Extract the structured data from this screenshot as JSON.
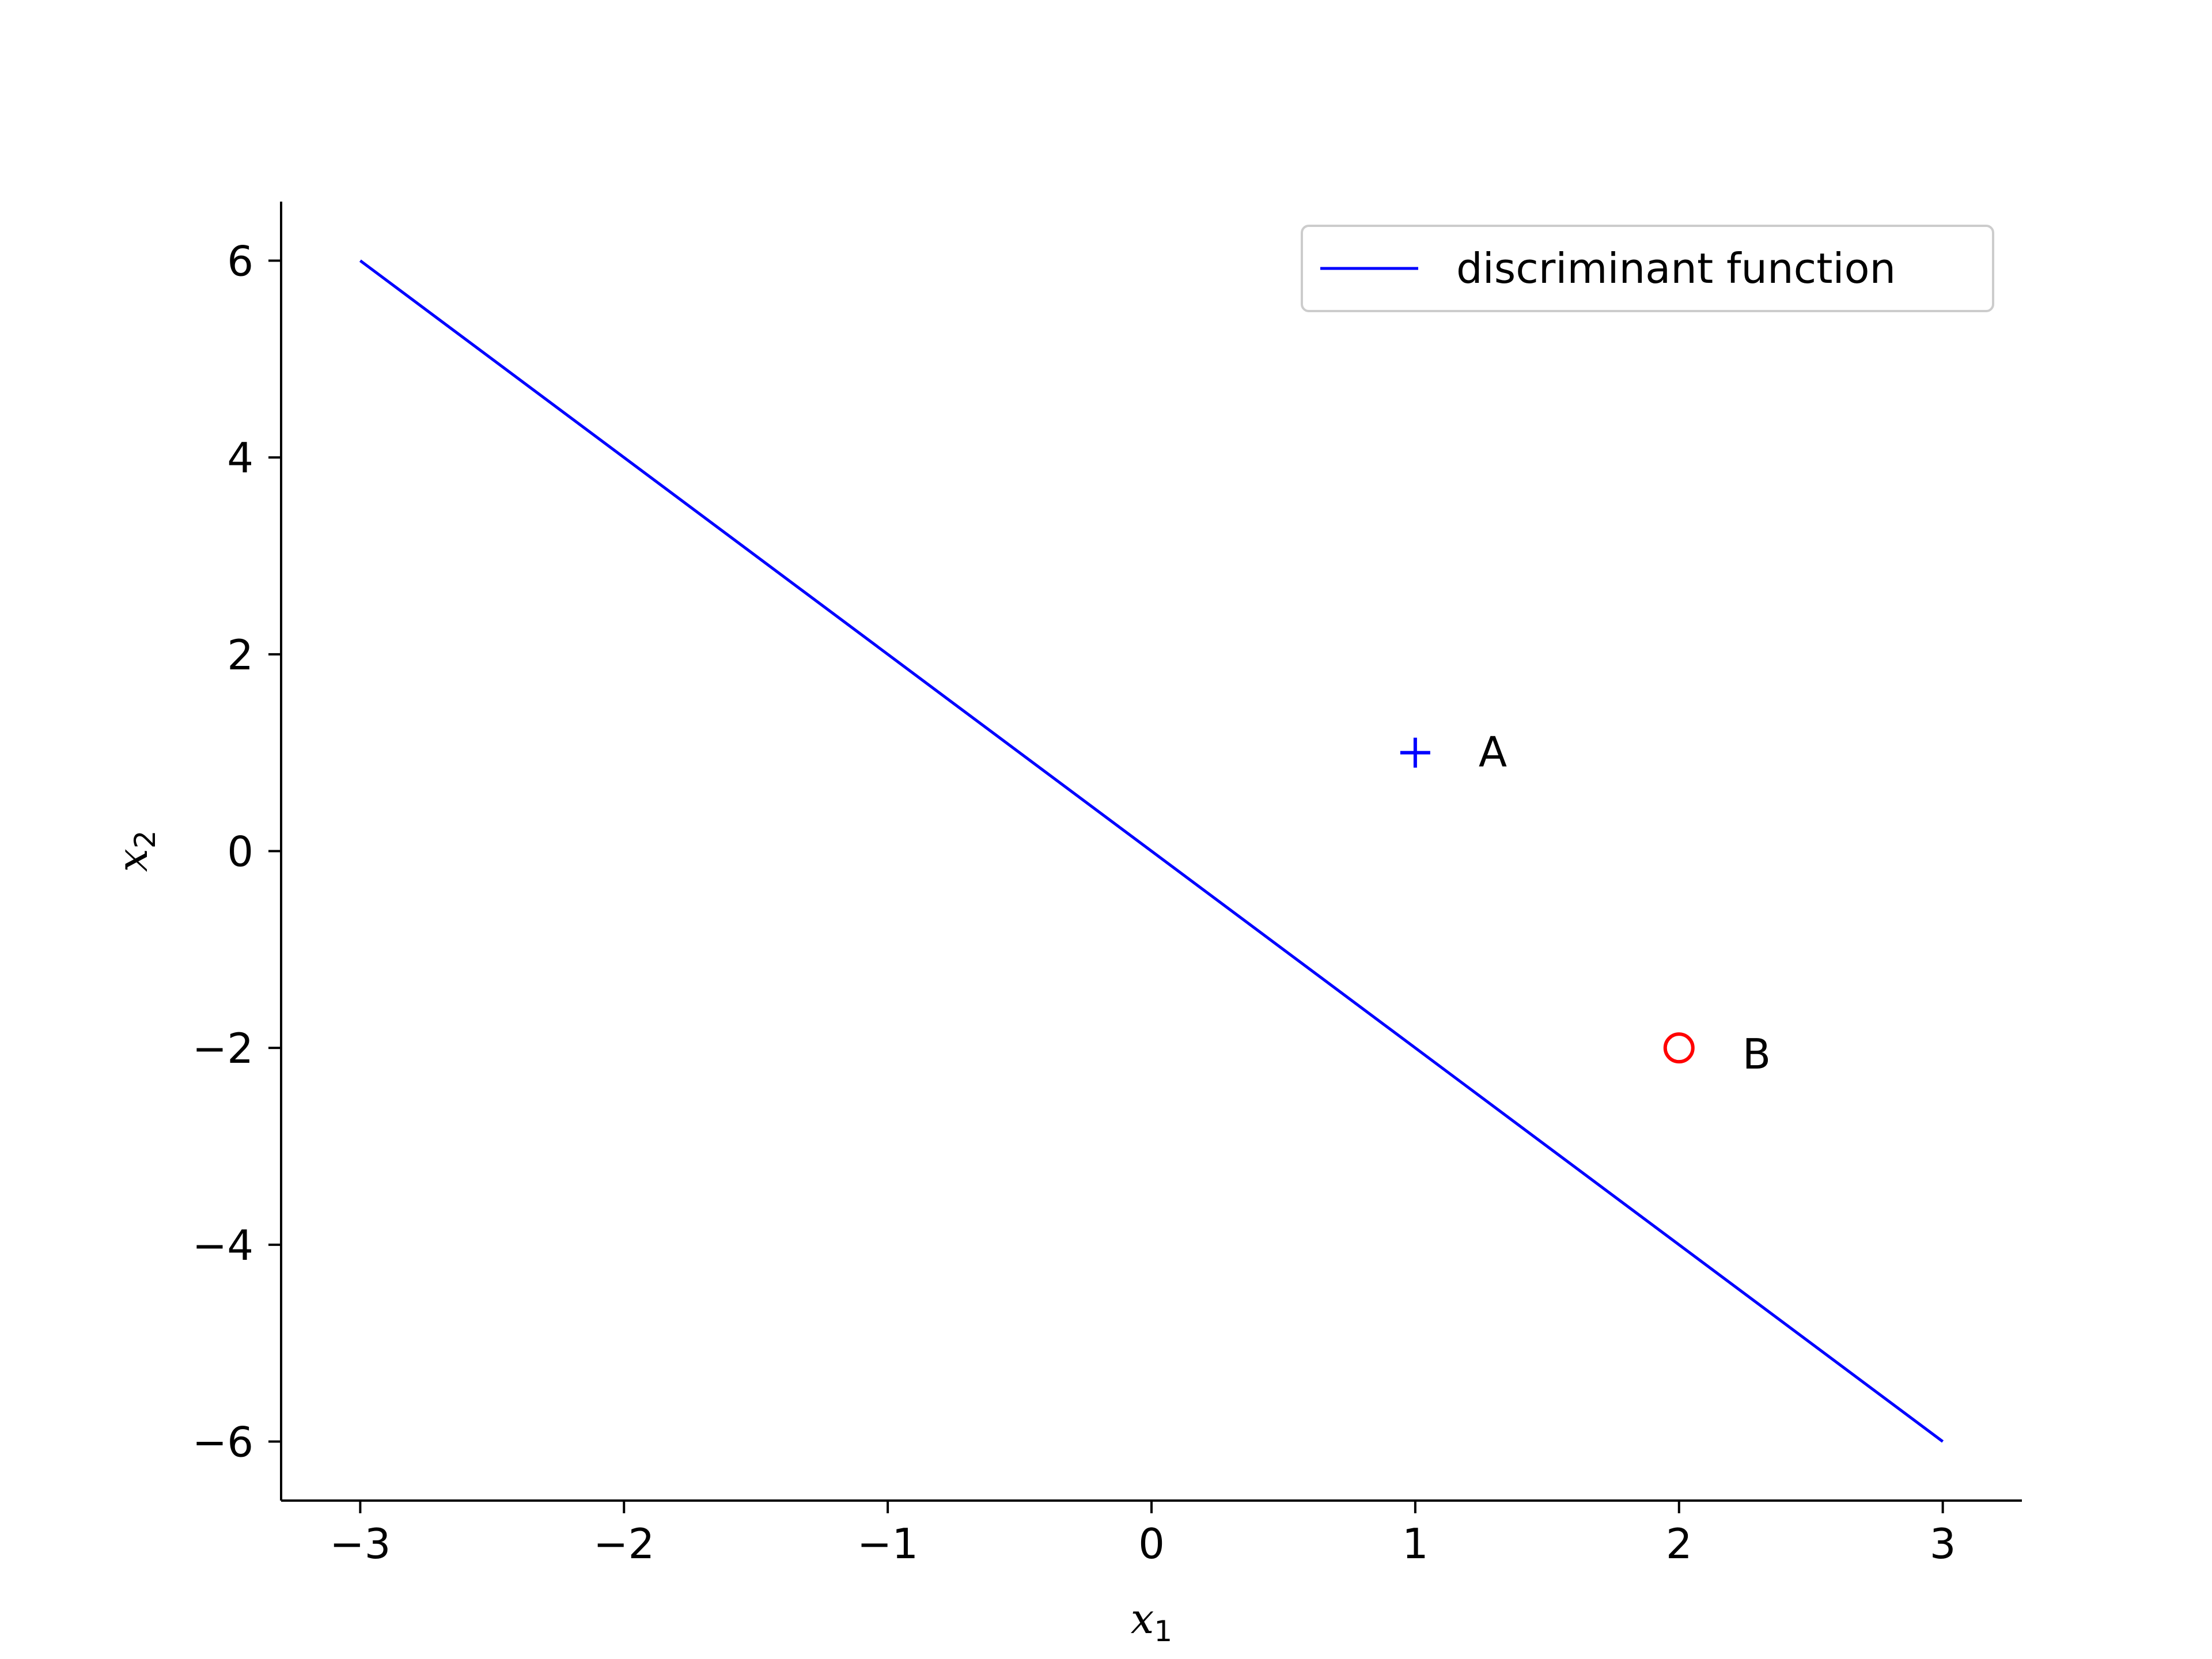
{
  "chart_data": {
    "type": "line",
    "xlim": [
      -3.3,
      3.3
    ],
    "ylim": [
      -6.6,
      6.6
    ],
    "xticks": [
      -3,
      -2,
      -1,
      0,
      1,
      2,
      3
    ],
    "yticks": [
      -6,
      -4,
      -2,
      0,
      2,
      4,
      6
    ],
    "xlabel": {
      "base": "x",
      "sub": "1"
    },
    "ylabel": {
      "base": "x",
      "sub": "2"
    },
    "grid": false,
    "legend": {
      "placement": "top-right"
    },
    "series": [
      {
        "name": "discriminant function",
        "kind": "line",
        "color": "#0000ff",
        "x": [
          -3,
          3
        ],
        "y": [
          6,
          -6
        ]
      }
    ],
    "points": [
      {
        "label": "A",
        "x": 1,
        "y": 1,
        "marker": "plus",
        "color": "#0000ff"
      },
      {
        "label": "B",
        "x": 2,
        "y": -2,
        "marker": "circle",
        "color": "#ff0000"
      }
    ]
  }
}
